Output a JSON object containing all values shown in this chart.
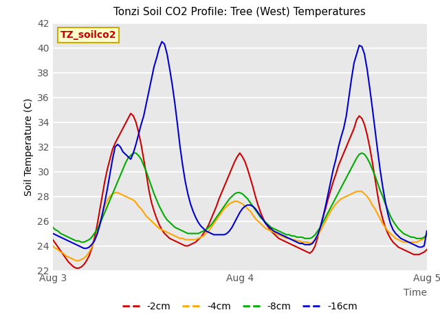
{
  "title": "Tonzi Soil CO2 Profile: Tree (West) Temperatures",
  "ylabel": "Soil Temperature (C)",
  "xlabel": "Time",
  "ylim": [
    22,
    42
  ],
  "annotation_text": "TZ_soilco2",
  "annotation_color": "#cc0000",
  "annotation_bg": "#ffffcc",
  "annotation_border": "#ccaa00",
  "plot_bg": "#e8e8e8",
  "grid_color": "white",
  "legend_entries": [
    "-2cm",
    "-4cm",
    "-8cm",
    "-16cm"
  ],
  "line_colors": [
    "#cc0000",
    "#ffa500",
    "#00aa00",
    "#0000cc"
  ],
  "xtick_labels": [
    "Aug 3",
    "Aug 4",
    "Aug 5"
  ],
  "xtick_positions": [
    0,
    48,
    96
  ],
  "n_points": 145,
  "series_2cm": [
    24.5,
    24.2,
    23.9,
    23.6,
    23.3,
    23.0,
    22.7,
    22.5,
    22.3,
    22.2,
    22.2,
    22.3,
    22.5,
    22.8,
    23.2,
    23.8,
    24.6,
    25.6,
    26.8,
    28.0,
    29.2,
    30.2,
    31.0,
    31.8,
    32.3,
    32.7,
    33.1,
    33.5,
    33.9,
    34.3,
    34.7,
    34.5,
    34.0,
    33.2,
    32.2,
    31.0,
    29.8,
    28.5,
    27.5,
    26.8,
    26.2,
    25.7,
    25.3,
    25.0,
    24.8,
    24.6,
    24.5,
    24.4,
    24.3,
    24.2,
    24.1,
    24.0,
    24.0,
    24.1,
    24.2,
    24.3,
    24.5,
    24.7,
    25.0,
    25.3,
    25.7,
    26.2,
    26.7,
    27.2,
    27.8,
    28.3,
    28.8,
    29.3,
    29.8,
    30.3,
    30.8,
    31.2,
    31.5,
    31.2,
    30.8,
    30.2,
    29.5,
    28.8,
    28.0,
    27.3,
    26.7,
    26.2,
    25.8,
    25.5,
    25.2,
    25.0,
    24.8,
    24.6,
    24.5,
    24.4,
    24.3,
    24.2,
    24.1,
    24.0,
    23.9,
    23.8,
    23.7,
    23.6,
    23.5,
    23.4,
    23.6,
    24.0,
    24.7,
    25.5,
    26.3,
    27.0,
    27.8,
    28.5,
    29.2,
    29.8,
    30.5,
    31.0,
    31.5,
    32.0,
    32.5,
    33.0,
    33.5,
    34.2,
    34.5,
    34.3,
    33.8,
    33.0,
    32.0,
    30.8,
    29.5,
    28.2,
    27.0,
    26.2,
    25.5,
    25.0,
    24.6,
    24.3,
    24.1,
    23.9,
    23.8,
    23.7,
    23.6,
    23.5,
    23.4,
    23.3,
    23.3,
    23.3,
    23.4,
    23.5,
    23.7
  ],
  "series_4cm": [
    24.0,
    23.8,
    23.7,
    23.5,
    23.4,
    23.2,
    23.1,
    23.0,
    22.9,
    22.8,
    22.8,
    22.9,
    23.0,
    23.2,
    23.5,
    23.9,
    24.4,
    25.0,
    25.8,
    26.5,
    27.2,
    27.7,
    28.0,
    28.2,
    28.3,
    28.3,
    28.2,
    28.1,
    28.0,
    27.9,
    27.8,
    27.7,
    27.5,
    27.2,
    27.0,
    26.7,
    26.4,
    26.2,
    26.0,
    25.8,
    25.6,
    25.4,
    25.3,
    25.2,
    25.1,
    25.0,
    24.9,
    24.8,
    24.7,
    24.6,
    24.6,
    24.5,
    24.5,
    24.5,
    24.5,
    24.5,
    24.6,
    24.7,
    24.8,
    25.0,
    25.2,
    25.5,
    25.8,
    26.1,
    26.4,
    26.7,
    27.0,
    27.2,
    27.4,
    27.5,
    27.6,
    27.6,
    27.5,
    27.4,
    27.2,
    27.0,
    26.8,
    26.5,
    26.2,
    26.0,
    25.8,
    25.6,
    25.4,
    25.3,
    25.2,
    25.1,
    25.0,
    24.9,
    24.8,
    24.7,
    24.6,
    24.6,
    24.5,
    24.5,
    24.4,
    24.4,
    24.3,
    24.3,
    24.3,
    24.2,
    24.3,
    24.5,
    24.8,
    25.2,
    25.6,
    26.0,
    26.4,
    26.8,
    27.1,
    27.4,
    27.6,
    27.8,
    27.9,
    28.0,
    28.1,
    28.2,
    28.3,
    28.4,
    28.4,
    28.4,
    28.2,
    28.0,
    27.7,
    27.3,
    27.0,
    26.6,
    26.2,
    25.8,
    25.5,
    25.2,
    25.0,
    24.8,
    24.6,
    24.5,
    24.4,
    24.3,
    24.3,
    24.3,
    24.3,
    24.3,
    24.3,
    24.4,
    24.5,
    24.6,
    24.8
  ],
  "series_8cm": [
    25.5,
    25.3,
    25.2,
    25.0,
    24.9,
    24.8,
    24.7,
    24.6,
    24.5,
    24.4,
    24.4,
    24.3,
    24.3,
    24.4,
    24.5,
    24.7,
    25.0,
    25.3,
    25.7,
    26.2,
    26.7,
    27.2,
    27.7,
    28.2,
    28.7,
    29.2,
    29.7,
    30.2,
    30.7,
    31.1,
    31.3,
    31.5,
    31.5,
    31.3,
    31.0,
    30.5,
    30.0,
    29.4,
    28.8,
    28.2,
    27.7,
    27.2,
    26.8,
    26.4,
    26.1,
    25.9,
    25.7,
    25.5,
    25.4,
    25.3,
    25.2,
    25.1,
    25.0,
    25.0,
    25.0,
    25.0,
    25.0,
    25.1,
    25.2,
    25.3,
    25.5,
    25.7,
    26.0,
    26.3,
    26.6,
    26.9,
    27.2,
    27.5,
    27.8,
    28.0,
    28.2,
    28.3,
    28.3,
    28.2,
    28.0,
    27.8,
    27.5,
    27.2,
    26.9,
    26.6,
    26.3,
    26.1,
    25.9,
    25.7,
    25.5,
    25.4,
    25.3,
    25.2,
    25.1,
    25.0,
    24.9,
    24.9,
    24.8,
    24.8,
    24.7,
    24.7,
    24.7,
    24.6,
    24.6,
    24.6,
    24.7,
    24.9,
    25.2,
    25.5,
    25.9,
    26.3,
    26.7,
    27.1,
    27.5,
    27.9,
    28.3,
    28.7,
    29.1,
    29.5,
    29.9,
    30.3,
    30.7,
    31.1,
    31.4,
    31.5,
    31.4,
    31.1,
    30.7,
    30.2,
    29.7,
    29.1,
    28.5,
    28.0,
    27.4,
    26.9,
    26.4,
    26.0,
    25.7,
    25.4,
    25.2,
    25.0,
    24.9,
    24.8,
    24.7,
    24.7,
    24.6,
    24.6,
    24.6,
    24.7,
    24.9
  ],
  "series_16cm": [
    25.0,
    24.9,
    24.8,
    24.7,
    24.6,
    24.5,
    24.4,
    24.3,
    24.2,
    24.1,
    24.0,
    23.9,
    23.8,
    23.8,
    23.9,
    24.1,
    24.4,
    24.9,
    25.6,
    26.5,
    27.5,
    28.6,
    29.8,
    31.0,
    32.0,
    32.2,
    32.0,
    31.6,
    31.4,
    31.2,
    31.0,
    31.5,
    32.2,
    33.0,
    33.8,
    34.5,
    35.5,
    36.5,
    37.5,
    38.5,
    39.2,
    40.0,
    40.5,
    40.3,
    39.5,
    38.3,
    37.0,
    35.5,
    33.8,
    32.0,
    30.5,
    29.2,
    28.2,
    27.4,
    26.8,
    26.3,
    25.9,
    25.6,
    25.4,
    25.2,
    25.1,
    25.0,
    24.9,
    24.9,
    24.9,
    24.9,
    24.9,
    25.0,
    25.2,
    25.5,
    25.9,
    26.3,
    26.7,
    27.0,
    27.2,
    27.3,
    27.3,
    27.2,
    27.0,
    26.7,
    26.4,
    26.1,
    25.8,
    25.6,
    25.4,
    25.2,
    25.1,
    25.0,
    24.9,
    24.8,
    24.7,
    24.6,
    24.5,
    24.4,
    24.3,
    24.2,
    24.2,
    24.1,
    24.1,
    24.1,
    24.2,
    24.5,
    24.9,
    25.5,
    26.3,
    27.2,
    28.2,
    29.2,
    30.2,
    31.0,
    32.0,
    32.8,
    33.5,
    34.5,
    36.0,
    37.5,
    38.8,
    39.5,
    40.2,
    40.1,
    39.5,
    38.3,
    36.8,
    35.2,
    33.5,
    31.8,
    30.2,
    28.8,
    27.6,
    26.6,
    25.8,
    25.3,
    25.0,
    24.8,
    24.6,
    24.5,
    24.4,
    24.3,
    24.2,
    24.1,
    24.0,
    23.9,
    23.9,
    24.0,
    25.2
  ]
}
